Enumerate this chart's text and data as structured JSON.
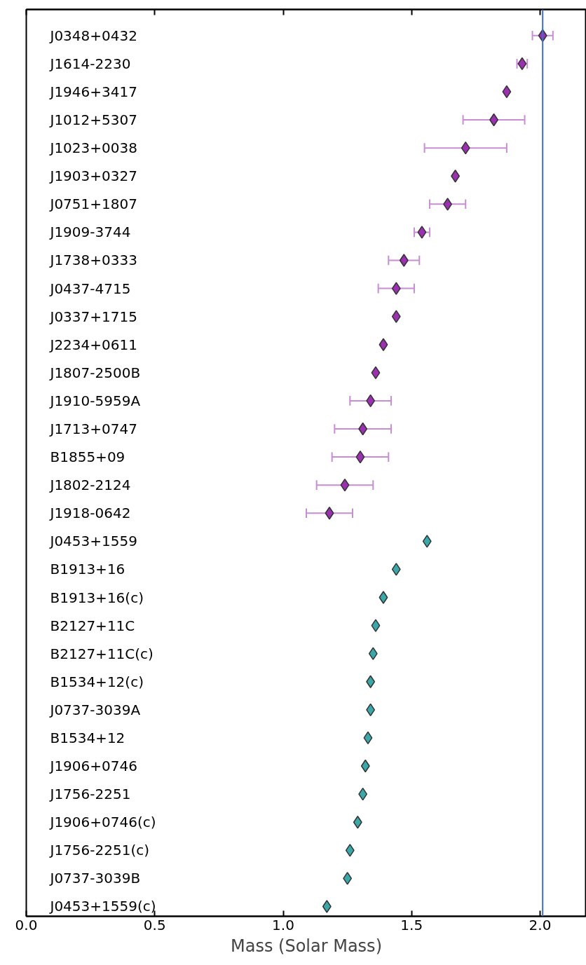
{
  "chart_data": {
    "type": "scatter",
    "xlabel": "Mass (Solar Mass)",
    "marker": "diamond",
    "grid": false,
    "orientation": "horizontal",
    "categories": [
      "J0348+0432",
      "J1614-2230",
      "J1946+3417",
      "J1012+5307",
      "J1023+0038",
      "J1903+0327",
      "J0751+1807",
      "J1909-3744",
      "J1738+0333",
      "J0437-4715",
      "J0337+1715",
      "J2234+0611",
      "J1807-2500B",
      "J1910-5959A",
      "J1713+0747",
      "B1855+09",
      "J1802-2124",
      "J1918-0642",
      "J0453+1559",
      "B1913+16",
      "B1913+16(c)",
      "B2127+11C",
      "B2127+11C(c)",
      "B1534+12(c)",
      "J0737-3039A",
      "B1534+12",
      "J1906+0746",
      "J1756-2251",
      "J1906+0746(c)",
      "J1756-2251(c)",
      "J0737-3039B",
      "J0453+1559(c)"
    ],
    "xlim": [
      0,
      2.18
    ],
    "xticks": [
      {
        "value": 0,
        "label": "0.0"
      },
      {
        "value": 0.5,
        "label": "0.5"
      },
      {
        "value": 1,
        "label": "1.0"
      },
      {
        "value": 1.5,
        "label": "1.5"
      },
      {
        "value": 2,
        "label": "2.0"
      }
    ],
    "tick_labels": "x",
    "series": [
      {
        "color": "#9b30b0",
        "values": [
          2.01,
          1.93,
          1.87,
          1.82,
          1.71,
          1.67,
          1.64,
          1.54,
          1.47,
          1.44,
          1.44,
          1.39,
          1.36,
          1.34,
          1.31,
          1.3,
          1.24,
          1.18,
          null,
          null,
          null,
          null,
          null,
          null,
          null,
          null,
          null,
          null,
          null,
          null,
          null,
          null
        ],
        "errors": [
          0.04,
          0.02,
          null,
          [
            1.7,
            1.94
          ],
          [
            1.55,
            1.87
          ],
          null,
          [
            1.57,
            1.71
          ],
          [
            1.51,
            1.57
          ],
          [
            1.41,
            1.53
          ],
          [
            1.37,
            1.51
          ],
          null,
          null,
          null,
          [
            1.26,
            1.42
          ],
          [
            1.2,
            1.42
          ],
          [
            1.19,
            1.41
          ],
          [
            1.13,
            1.35
          ],
          [
            1.09,
            1.27
          ],
          null,
          null,
          null,
          null,
          null,
          null,
          null,
          null,
          null,
          null,
          null,
          null,
          null,
          null
        ]
      },
      {
        "color": "#3aa8a8",
        "values": [
          null,
          null,
          null,
          null,
          null,
          null,
          null,
          null,
          null,
          null,
          null,
          null,
          null,
          null,
          null,
          null,
          null,
          null,
          1.56,
          1.44,
          1.39,
          1.36,
          1.35,
          1.34,
          1.34,
          1.33,
          1.32,
          1.31,
          1.29,
          1.26,
          1.25,
          1.17
        ]
      }
    ],
    "ref_lines": [
      {
        "axis": "x",
        "value": 2.01,
        "color": "#3a6fd0"
      }
    ]
  }
}
